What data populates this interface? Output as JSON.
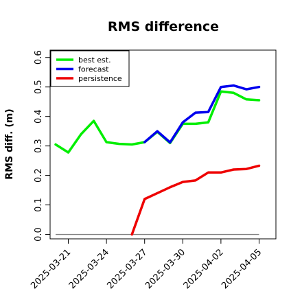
{
  "chart_data": {
    "type": "line",
    "title": "RMS difference",
    "xlabel": "",
    "ylabel": "RMS diff. (m)",
    "x_ticks": [
      {
        "label": "2025-03-21",
        "color": "#000000"
      },
      {
        "label": "2025-03-24",
        "color": "#000000"
      },
      {
        "label": "2025-03-27",
        "color": "#2e7d1a"
      },
      {
        "label": "2025-03-30",
        "color": "#000000"
      },
      {
        "label": "2025-04-02",
        "color": "#000000"
      },
      {
        "label": "2025-04-05",
        "color": "#000000"
      }
    ],
    "y_ticks": [
      "0.0",
      "0.1",
      "0.2",
      "0.3",
      "0.4",
      "0.5",
      "0.6"
    ],
    "xlim": [
      "2025-03-20",
      "2025-04-06"
    ],
    "ylim": [
      -0.015,
      0.625
    ],
    "grid": false,
    "legend_position": "top-left",
    "series": [
      {
        "name": "best est.",
        "color": "#00ee00",
        "points": [
          [
            "2025-03-20",
            0.305
          ],
          [
            "2025-03-21",
            0.278
          ],
          [
            "2025-03-22",
            0.34
          ],
          [
            "2025-03-23",
            0.385
          ],
          [
            "2025-03-24",
            0.313
          ],
          [
            "2025-03-25",
            0.307
          ],
          [
            "2025-03-26",
            0.305
          ],
          [
            "2025-03-27",
            0.313
          ],
          [
            "2025-03-28",
            0.348
          ],
          [
            "2025-03-29",
            0.31
          ],
          [
            "2025-03-30",
            0.375
          ],
          [
            "2025-03-31",
            0.375
          ],
          [
            "2025-04-01",
            0.38
          ],
          [
            "2025-04-02",
            0.485
          ],
          [
            "2025-04-03",
            0.48
          ],
          [
            "2025-04-04",
            0.458
          ],
          [
            "2025-04-05",
            0.455
          ]
        ]
      },
      {
        "name": "forecast",
        "color": "#0000ee",
        "points": [
          [
            "2025-03-27",
            0.313
          ],
          [
            "2025-03-28",
            0.35
          ],
          [
            "2025-03-29",
            0.312
          ],
          [
            "2025-03-30",
            0.38
          ],
          [
            "2025-03-31",
            0.413
          ],
          [
            "2025-04-01",
            0.415
          ],
          [
            "2025-04-02",
            0.5
          ],
          [
            "2025-04-03",
            0.505
          ],
          [
            "2025-04-04",
            0.492
          ],
          [
            "2025-04-05",
            0.5
          ]
        ]
      },
      {
        "name": "persistence",
        "color": "#ee0000",
        "points": [
          [
            "2025-03-26",
            0.0
          ],
          [
            "2025-03-27",
            0.12
          ],
          [
            "2025-03-28",
            0.14
          ],
          [
            "2025-03-29",
            0.16
          ],
          [
            "2025-03-30",
            0.178
          ],
          [
            "2025-03-31",
            0.183
          ],
          [
            "2025-04-01",
            0.21
          ],
          [
            "2025-04-02",
            0.21
          ],
          [
            "2025-04-03",
            0.22
          ],
          [
            "2025-04-04",
            0.222
          ],
          [
            "2025-04-05",
            0.233
          ]
        ]
      }
    ],
    "reference_lines": [
      {
        "y": 0.0,
        "color": "#808080",
        "from": "2025-03-20",
        "to": "2025-04-05"
      }
    ]
  }
}
